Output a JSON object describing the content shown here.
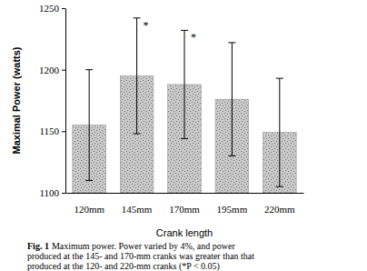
{
  "chart_data": {
    "type": "bar",
    "categories": [
      "120mm",
      "145mm",
      "170mm",
      "195mm",
      "220mm"
    ],
    "values": [
      1155,
      1195,
      1188,
      1176,
      1149
    ],
    "errors": [
      45,
      47,
      44,
      46,
      44
    ],
    "color": "#c9c9c9",
    "y_label": "Maximal Power (watts)",
    "x_label": "Crank length",
    "ylim": [
      1100,
      1250
    ],
    "yticks": [
      1100,
      1150,
      1200,
      1250
    ],
    "grid": false,
    "annotations": [
      {
        "category": "145mm",
        "text": "*"
      },
      {
        "category": "170mm",
        "text": "*"
      }
    ],
    "caption_label": "Fig. 1",
    "caption": [
      "Maximum power. Power varied by 4%, and power",
      "produced at the 145- and 170-mm cranks was greater than that",
      "produced at the 120- and 220-mm cranks (*P < 0.05)"
    ]
  }
}
